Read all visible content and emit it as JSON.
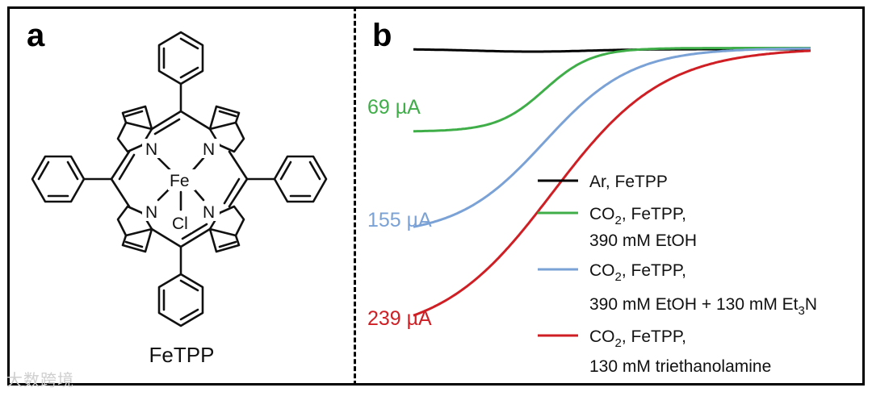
{
  "panel_a": {
    "label": "a",
    "molecule_name": "FeTPP",
    "atoms": {
      "metal": "Fe",
      "nitrogen": "N",
      "axial_ligand": "Cl"
    }
  },
  "panel_b": {
    "label": "b"
  },
  "watermark": "大数跨境",
  "colors": {
    "black": "#000000",
    "green": "#3fae49",
    "blue": "#7ba2d6",
    "red": "#d01f24"
  },
  "chart_data": {
    "type": "line",
    "title": "",
    "xlabel": "",
    "ylabel": "",
    "grid": false,
    "x_range": [
      0,
      100
    ],
    "y_range": [
      -260,
      5
    ],
    "annotations": [
      {
        "text": "69 µA",
        "series": "green"
      },
      {
        "text": "155 µA",
        "series": "blue"
      },
      {
        "text": "239 µA",
        "series": "red"
      }
    ],
    "series": [
      {
        "key": "black",
        "legend": [
          "Ar, FeTPP"
        ],
        "plateau": -2,
        "midpoint": 38,
        "width": 3,
        "color": "#000000"
      },
      {
        "key": "green",
        "legend": [
          "CO",
          "2",
          ", FeTPP,",
          "390 mM EtOH"
        ],
        "plateau": -69,
        "midpoint": 33,
        "width": 6,
        "color": "#3fae49"
      },
      {
        "key": "blue",
        "legend": [
          "CO",
          "2",
          ", FeTPP,",
          "390 mM EtOH + 130 mM Et",
          "3",
          "N"
        ],
        "plateau": -155,
        "midpoint": 33,
        "width": 11,
        "color": "#7ba2d6"
      },
      {
        "key": "red",
        "legend": [
          "CO",
          "2",
          ", FeTPP,",
          "130 mM triethanolamine"
        ],
        "plateau": -239,
        "midpoint": 35,
        "width": 14,
        "color": "#d01f24"
      }
    ]
  }
}
